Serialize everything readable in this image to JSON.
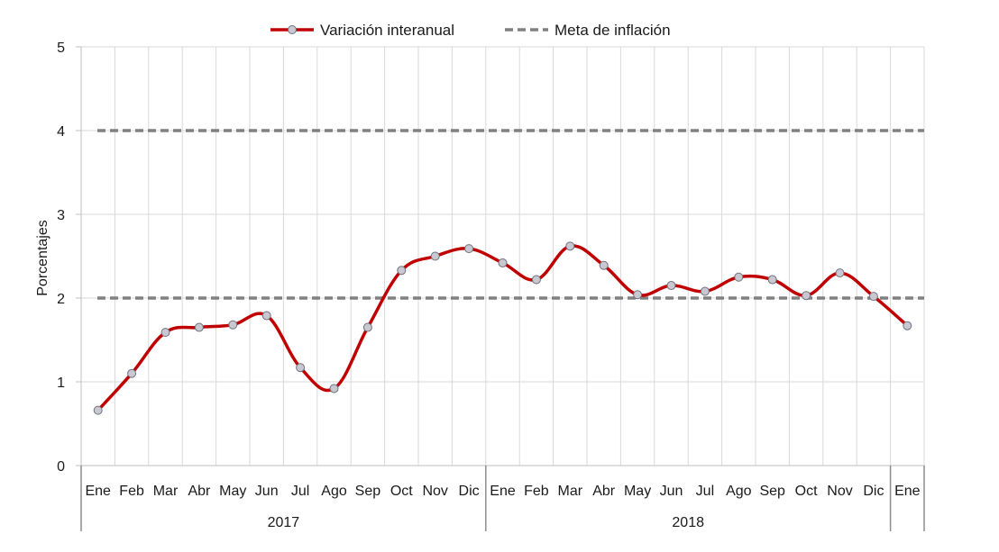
{
  "chart_data": {
    "type": "line",
    "ylabel": "Porcentajes",
    "xlabel": "",
    "ylim": [
      0,
      5
    ],
    "yticks": [
      "0",
      "1",
      "2",
      "3",
      "4",
      "5"
    ],
    "grid": true,
    "legend_position": "top-center",
    "categories": [
      "Ene",
      "Feb",
      "Mar",
      "Abr",
      "May",
      "Jun",
      "Jul",
      "Ago",
      "Sep",
      "Oct",
      "Nov",
      "Dic",
      "Ene",
      "Feb",
      "Mar",
      "Abr",
      "May",
      "Jun",
      "Jul",
      "Ago",
      "Sep",
      "Oct",
      "Nov",
      "Dic",
      "Ene"
    ],
    "groups": [
      {
        "label": "2017",
        "start": 0,
        "end": 11
      },
      {
        "label": "2018",
        "start": 12,
        "end": 23
      }
    ],
    "series": [
      {
        "name": "Variación interanual",
        "color": "#c00000",
        "marker_color": "#c8c8d0",
        "style": "solid-smooth-markers",
        "values": [
          0.66,
          1.1,
          1.59,
          1.65,
          1.68,
          1.79,
          1.17,
          0.92,
          1.65,
          2.33,
          2.5,
          2.59,
          2.42,
          2.22,
          2.62,
          2.39,
          2.04,
          2.15,
          2.08,
          2.25,
          2.22,
          2.03,
          2.3,
          2.02,
          1.67
        ]
      },
      {
        "name": "Meta de inflación",
        "color": "#808080",
        "style": "dashed",
        "bands": [
          2,
          4
        ]
      }
    ]
  }
}
